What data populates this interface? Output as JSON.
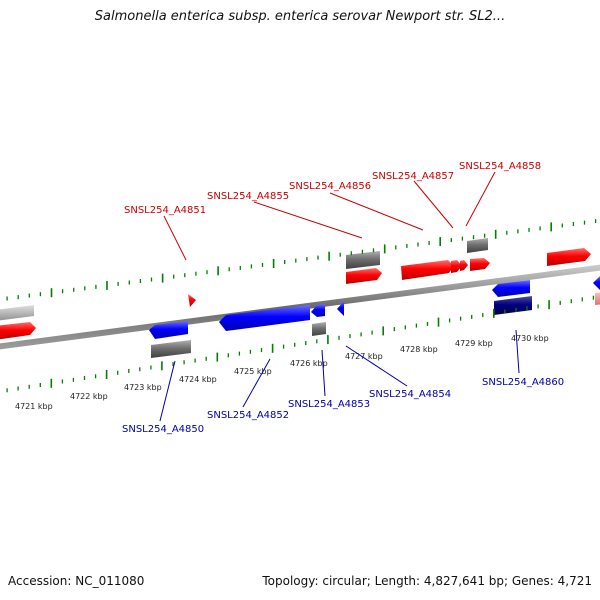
{
  "title": "Salmonella enterica subsp. enterica serovar Newport str. SL2...",
  "footer": {
    "accession": "Accession: NC_011080",
    "topology": "Topology: circular; Length: 4,827,641 bp; Genes: 4,721"
  },
  "colors": {
    "forward": "#ff0000",
    "reverse": "#0000ff",
    "gray": "#777777",
    "tick": "#008000",
    "forward_label": "#cc0000",
    "reverse_label": "#0000aa"
  },
  "scale_labels": [
    "4721 kbp",
    "4722 kbp",
    "4723 kbp",
    "4724 kbp",
    "4725 kbp",
    "4726 kbp",
    "4727 kbp",
    "4728 kbp",
    "4729 kbp",
    "4730 kbp"
  ],
  "forward_genes": [
    "SNSL254_A4851",
    "SNSL254_A4855",
    "SNSL254_A4856",
    "SNSL254_A4857",
    "SNSL254_A4858"
  ],
  "reverse_genes": [
    "SNSL254_A4850",
    "SNSL254_A4852",
    "SNSL254_A4853",
    "SNSL254_A4854",
    "SNSL254_A4860"
  ]
}
